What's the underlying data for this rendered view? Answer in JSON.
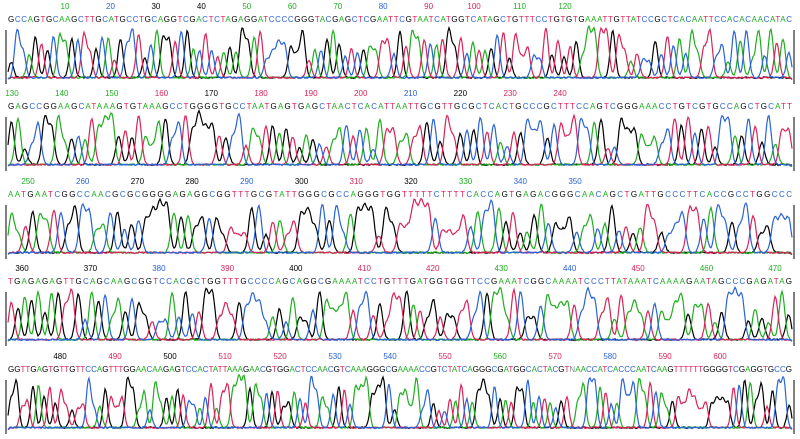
{
  "base_colors": {
    "A": "#1fae1f",
    "C": "#2a63d6",
    "G": "#000000",
    "T": "#d8245a",
    "N": "#888888"
  },
  "rows": [
    {
      "labels": [
        {
          "text": 10,
          "color": "#1fae1f"
        },
        {
          "text": 20,
          "color": "#2a63d6"
        },
        {
          "text": 30,
          "color": "#000000"
        },
        {
          "text": 40,
          "color": "#000000"
        },
        {
          "text": 50,
          "color": "#1fae1f"
        },
        {
          "text": 60,
          "color": "#1fae1f"
        },
        {
          "text": 70,
          "color": "#1fae1f"
        },
        {
          "text": 80,
          "color": "#2a63d6"
        },
        {
          "text": 90,
          "color": "#d8245a"
        },
        {
          "text": 100,
          "color": "#d8245a"
        },
        {
          "text": 110,
          "color": "#1fae1f"
        },
        {
          "text": 120,
          "color": "#1fae1f"
        }
      ],
      "sequence": "GCCAGTGCAAGCTTGCATGCCTGCAGGTCGACTCTAGAGGATCCCCGGGTACGAGCTCGAATTCGTAATCATGGTCATAGCTGTTTCCTGTGTGAAATTGTTATCCGCTCACAATTCCACACAACATAC"
    },
    {
      "labels": [
        {
          "text": 130,
          "color": "#1fae1f"
        },
        {
          "text": 140,
          "color": "#1fae1f"
        },
        {
          "text": 150,
          "color": "#1fae1f"
        },
        {
          "text": 160,
          "color": "#d8245a"
        },
        {
          "text": 170,
          "color": "#000000"
        },
        {
          "text": 180,
          "color": "#d8245a"
        },
        {
          "text": 190,
          "color": "#d8245a"
        },
        {
          "text": 200,
          "color": "#d8245a"
        },
        {
          "text": 210,
          "color": "#2a63d6"
        },
        {
          "text": 220,
          "color": "#000000"
        },
        {
          "text": 230,
          "color": "#d8245a"
        },
        {
          "text": 240,
          "color": "#d8245a"
        }
      ],
      "sequence": "GAGCCGGAAGCATAAAGTGTAAAGCCTGGGGTGCCTAATGAGTGAGCTAACTCACATTAATTGCGTTGCGCTCACTGCCCGCTTTCCAGTCGGGAAACCTGTCGTGCCAGCTGCATT"
    },
    {
      "labels": [
        {
          "text": 250,
          "color": "#1fae1f"
        },
        {
          "text": 260,
          "color": "#2a63d6"
        },
        {
          "text": 270,
          "color": "#000000"
        },
        {
          "text": 280,
          "color": "#000000"
        },
        {
          "text": 290,
          "color": "#2a63d6"
        },
        {
          "text": 300,
          "color": "#000000"
        },
        {
          "text": 310,
          "color": "#d8245a"
        },
        {
          "text": 320,
          "color": "#000000"
        },
        {
          "text": 330,
          "color": "#1fae1f"
        },
        {
          "text": 340,
          "color": "#2a63d6"
        },
        {
          "text": 350,
          "color": "#2a63d6"
        }
      ],
      "sequence": "AATGAATCGGCCAACGCGCGGGGAGAGGCGGTTTGCGTATTGGGCGCCAGGGTGGTTTTTCTTTTCACCAGTGAGACGGGCAACAGCTGATTGCCCTTCACCGCCTGGCCC"
    },
    {
      "labels": [
        {
          "text": 360,
          "color": "#000000"
        },
        {
          "text": 370,
          "color": "#000000"
        },
        {
          "text": 380,
          "color": "#2a63d6"
        },
        {
          "text": 390,
          "color": "#d8245a"
        },
        {
          "text": 400,
          "color": "#000000"
        },
        {
          "text": 410,
          "color": "#d8245a"
        },
        {
          "text": 420,
          "color": "#d8245a"
        },
        {
          "text": 430,
          "color": "#1fae1f"
        },
        {
          "text": 440,
          "color": "#2a63d6"
        },
        {
          "text": 450,
          "color": "#d8245a"
        },
        {
          "text": 460,
          "color": "#1fae1f"
        },
        {
          "text": 470,
          "color": "#1fae1f"
        }
      ],
      "sequence": "TGAGAGAGTTGCAGCAAGCGGTCCACGCTGGTTTGCCCCAGCAGGCGAAAATCCTGTTTGATGGTGGTTCCGAAATCGGCAAAATCCCTTATAAATCAAAAGAATAGCCCGAGATAG"
    },
    {
      "labels": [
        {
          "text": 480,
          "color": "#000000"
        },
        {
          "text": 490,
          "color": "#d8245a"
        },
        {
          "text": 500,
          "color": "#000000"
        },
        {
          "text": 510,
          "color": "#d8245a"
        },
        {
          "text": 520,
          "color": "#d8245a"
        },
        {
          "text": 530,
          "color": "#2a63d6"
        },
        {
          "text": 540,
          "color": "#2a63d6"
        },
        {
          "text": 550,
          "color": "#d8245a"
        },
        {
          "text": 560,
          "color": "#1fae1f"
        },
        {
          "text": 570,
          "color": "#d8245a"
        },
        {
          "text": 580,
          "color": "#2a63d6"
        },
        {
          "text": 590,
          "color": "#d8245a"
        },
        {
          "text": 600,
          "color": "#d8245a"
        }
      ],
      "sequence": "GGTTGAGTGTTGTTCCAGTTTGGAACAAGAGTCCACTATTAAAGAACGTGGACTCCAACGTCAAAGGGCGAAAACCGTCTATCAGGGCGATGGCACTACGTNAACCATCACCCAATCAAGTTTTTTGGGGTCGAGGTGCCG"
    }
  ]
}
